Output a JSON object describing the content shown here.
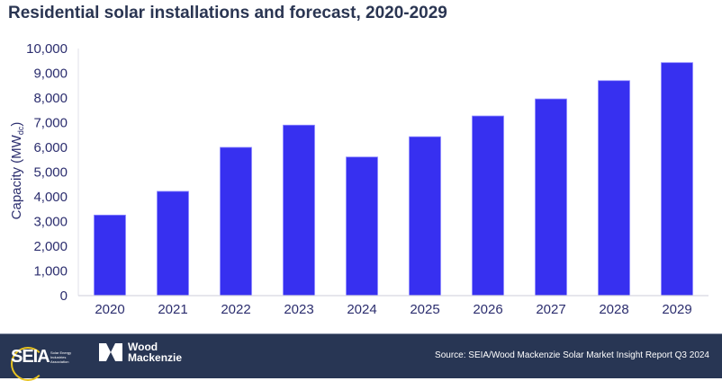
{
  "chart_data": {
    "type": "bar",
    "title": "Residential solar installations and forecast, 2020-2029",
    "ylabel": "Capacity (MW",
    "ylabel_sub": "dc",
    "ylabel_end": ")",
    "xlabel": "",
    "categories": [
      "2020",
      "2021",
      "2022",
      "2023",
      "2024",
      "2025",
      "2026",
      "2027",
      "2028",
      "2029"
    ],
    "values": [
      3260,
      4220,
      6000,
      6900,
      5610,
      6430,
      7270,
      7960,
      8700,
      9430
    ],
    "ylim": [
      0,
      10000
    ],
    "yticks": [
      0,
      1000,
      2000,
      3000,
      4000,
      5000,
      6000,
      7000,
      8000,
      9000,
      10000
    ],
    "ytick_labels": [
      "0",
      "1,000",
      "2,000",
      "3,000",
      "4,000",
      "5,000",
      "6,000",
      "7,000",
      "8,000",
      "9,000",
      "10,000"
    ],
    "grid": false,
    "legend": "none",
    "bar_color": "#3730f0",
    "text_color": "#2b2d6e"
  },
  "footer": {
    "source": "Source: SEIA/Wood Mackenzie Solar Market Insight Report Q3 2024",
    "seia_logo": "SEIA",
    "seia_subtext": "Solar Energy Industries Association",
    "wm_logo_line1": "Wood",
    "wm_logo_line2": "Mackenzie",
    "background": "#283654"
  }
}
